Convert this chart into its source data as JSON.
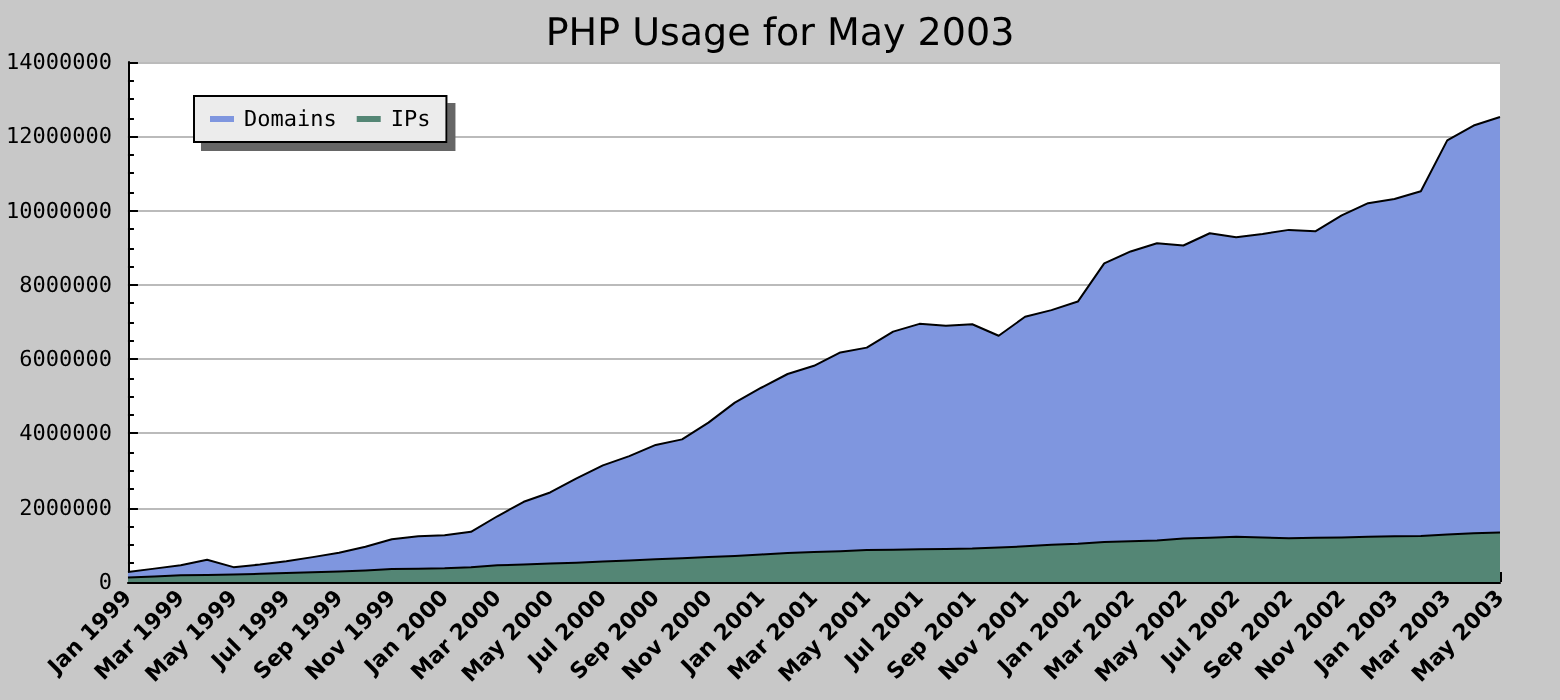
{
  "chart_data": {
    "type": "area",
    "title": "PHP Usage for May 2003",
    "categories": [
      "Jan 1999",
      null,
      "Mar 1999",
      null,
      "May 1999",
      null,
      "Jul 1999",
      null,
      "Sep 1999",
      null,
      "Nov 1999",
      null,
      "Jan 2000",
      null,
      "Mar 2000",
      null,
      "May 2000",
      null,
      "Jul 2000",
      null,
      "Sep 2000",
      null,
      "Nov 2000",
      null,
      "Jan 2001",
      null,
      "Mar 2001",
      null,
      "May 2001",
      null,
      "Jul 2001",
      null,
      "Sep 2001",
      null,
      "Nov 2001",
      null,
      "Jan 2002",
      null,
      "Mar 2002",
      null,
      "May 2002",
      null,
      "Jul 2002",
      null,
      "Sep 2002",
      null,
      "Nov 2002",
      null,
      "Jan 2003",
      null,
      "Mar 2003",
      null,
      "May 2003"
    ],
    "series": [
      {
        "name": "Domains",
        "color": "#7f96df",
        "values": [
          270000,
          360000,
          450000,
          600000,
          400000,
          470000,
          560000,
          670000,
          790000,
          950000,
          1150000,
          1230000,
          1260000,
          1350000,
          1770000,
          2160000,
          2410000,
          2790000,
          3140000,
          3390000,
          3690000,
          3840000,
          4290000,
          4830000,
          5230000,
          5600000,
          5820000,
          6180000,
          6310000,
          6740000,
          6950000,
          6900000,
          6940000,
          6630000,
          7140000,
          7320000,
          7550000,
          8580000,
          8900000,
          9120000,
          9060000,
          9390000,
          9280000,
          9370000,
          9480000,
          9440000,
          9870000,
          10200000,
          10310000,
          10520000,
          11890000,
          12290000,
          12520000
        ]
      },
      {
        "name": "IPs",
        "color": "#548675",
        "values": [
          120000,
          150000,
          180000,
          190000,
          200000,
          220000,
          240000,
          260000,
          280000,
          310000,
          350000,
          360000,
          370000,
          400000,
          450000,
          470000,
          500000,
          520000,
          550000,
          580000,
          610000,
          640000,
          670000,
          700000,
          740000,
          780000,
          810000,
          830000,
          860000,
          870000,
          880000,
          890000,
          900000,
          930000,
          960000,
          1000000,
          1030000,
          1080000,
          1100000,
          1120000,
          1170000,
          1190000,
          1220000,
          1200000,
          1180000,
          1190000,
          1200000,
          1220000,
          1230000,
          1240000,
          1280000,
          1310000,
          1330000
        ]
      }
    ],
    "ylim": [
      0,
      14000000
    ],
    "yticks": [
      0,
      2000000,
      4000000,
      6000000,
      8000000,
      10000000,
      12000000,
      14000000
    ],
    "grid": "y",
    "legend": "top left"
  }
}
